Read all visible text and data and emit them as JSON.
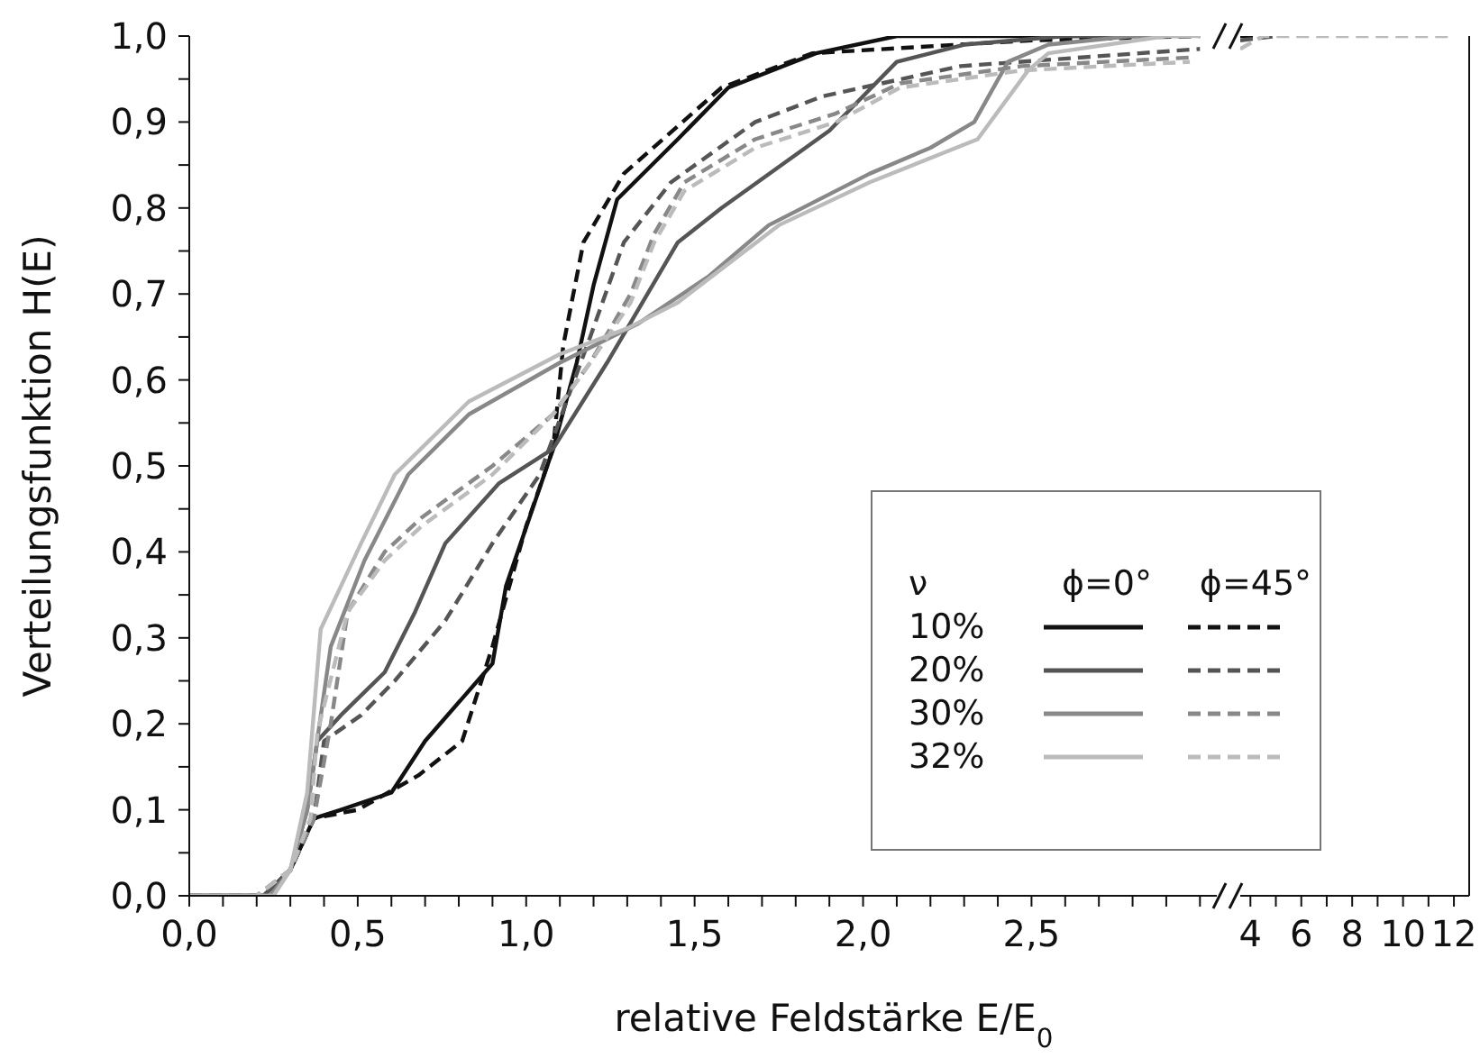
{
  "chart_data": [
    {
      "type": "line",
      "ylabel": "Verteilungsfunktion H(E)",
      "xlabel": "relative Feldstärke E/E$_{0}$",
      "legend": "bottom right",
      "legend_title": "ν",
      "annotations": [
        "ϕ=0°",
        "ϕ=45°"
      ],
      "marker": "none",
      "xlim": [
        0,
        3.05
      ],
      "xticks": [
        {
          "value": 0,
          "label": "0,0"
        },
        {
          "value": 0.1,
          "label": null
        },
        {
          "value": 0.2,
          "label": null
        },
        {
          "value": 0.3,
          "label": null
        },
        {
          "value": 0.4,
          "label": null
        },
        {
          "value": 0.5,
          "label": "0,5"
        },
        {
          "value": 0.6,
          "label": null
        },
        {
          "value": 0.7,
          "label": null
        },
        {
          "value": 0.8,
          "label": null
        },
        {
          "value": 0.9,
          "label": null
        },
        {
          "value": 1,
          "label": "1,0"
        },
        {
          "value": 1.1,
          "label": null
        },
        {
          "value": 1.2,
          "label": null
        },
        {
          "value": 1.3,
          "label": null
        },
        {
          "value": 1.4,
          "label": null
        },
        {
          "value": 1.5,
          "label": "1,5"
        },
        {
          "value": 1.6,
          "label": null
        },
        {
          "value": 1.7,
          "label": null
        },
        {
          "value": 1.8,
          "label": null
        },
        {
          "value": 1.9,
          "label": null
        },
        {
          "value": 2,
          "label": "2,0"
        },
        {
          "value": 2.1,
          "label": null
        },
        {
          "value": 2.2,
          "label": null
        },
        {
          "value": 2.3,
          "label": null
        },
        {
          "value": 2.4,
          "label": null
        },
        {
          "value": 2.5,
          "label": "2,5"
        },
        {
          "value": 2.6,
          "label": null
        },
        {
          "value": 2.7,
          "label": null
        },
        {
          "value": 2.8,
          "label": null
        },
        {
          "value": 2.9,
          "label": null
        },
        {
          "value": 3,
          "label": null
        }
      ],
      "ylim": [
        0,
        1
      ],
      "yticks": [
        {
          "value": 0,
          "label": "0,0"
        },
        {
          "value": 0.05,
          "label": null
        },
        {
          "value": 0.1,
          "label": "0,1"
        },
        {
          "value": 0.15,
          "label": null
        },
        {
          "value": 0.2,
          "label": "0,2"
        },
        {
          "value": 0.25,
          "label": null
        },
        {
          "value": 0.3,
          "label": "0,3"
        },
        {
          "value": 0.35,
          "label": null
        },
        {
          "value": 0.4,
          "label": "0,4"
        },
        {
          "value": 0.45,
          "label": null
        },
        {
          "value": 0.5,
          "label": "0,5"
        },
        {
          "value": 0.55,
          "label": null
        },
        {
          "value": 0.6,
          "label": "0,6"
        },
        {
          "value": 0.65,
          "label": null
        },
        {
          "value": 0.7,
          "label": "0,7"
        },
        {
          "value": 0.75,
          "label": null
        },
        {
          "value": 0.8,
          "label": "0,8"
        },
        {
          "value": 0.85,
          "label": null
        },
        {
          "value": 0.9,
          "label": "0,9"
        },
        {
          "value": 0.95,
          "label": null
        },
        {
          "value": 1,
          "label": "1,0"
        }
      ],
      "series": [
        {
          "name": "10%",
          "color": "#111111",
          "line_style": "solid",
          "x": [
            0,
            0.22,
            0.3,
            0.37,
            0.45,
            0.6,
            0.7,
            0.9,
            0.94,
            1.08,
            1.15,
            1.2,
            1.27,
            1.45,
            1.6,
            1.86,
            2.1,
            2.9
          ],
          "values": [
            0,
            0,
            0.03,
            0.09,
            0.1,
            0.12,
            0.18,
            0.27,
            0.36,
            0.52,
            0.62,
            0.71,
            0.81,
            0.88,
            0.94,
            0.98,
            1,
            1
          ]
        },
        {
          "color": "#111111",
          "line_style": "dashed",
          "x": [
            0,
            0.22,
            0.3,
            0.37,
            0.5,
            0.68,
            0.81,
            0.9,
            1,
            1.08,
            1.11,
            1.17,
            1.29,
            1.58,
            1.85,
            2.5,
            3.0
          ],
          "values": [
            0,
            0,
            0.03,
            0.09,
            0.1,
            0.14,
            0.18,
            0.29,
            0.43,
            0.52,
            0.64,
            0.76,
            0.84,
            0.94,
            0.98,
            0.995,
            1
          ]
        },
        {
          "name": "20%",
          "color": "#555555",
          "line_style": "solid",
          "x": [
            0,
            0.22,
            0.3,
            0.35,
            0.38,
            0.45,
            0.58,
            0.67,
            0.76,
            0.92,
            1.08,
            1.24,
            1.45,
            1.58,
            1.9,
            2.0,
            2.1,
            2.3,
            2.6,
            2.9
          ],
          "values": [
            0,
            0,
            0.03,
            0.1,
            0.18,
            0.21,
            0.26,
            0.33,
            0.41,
            0.48,
            0.52,
            0.62,
            0.76,
            0.8,
            0.89,
            0.93,
            0.97,
            0.99,
            1,
            1
          ]
        },
        {
          "color": "#555555",
          "line_style": "dashed",
          "x": [
            0,
            0.2,
            0.3,
            0.37,
            0.4,
            0.51,
            0.61,
            0.76,
            0.9,
            1.04,
            1.19,
            1.29,
            1.43,
            1.68,
            1.88,
            2.29,
            2.82,
            3.0
          ],
          "values": [
            0,
            0,
            0.03,
            0.09,
            0.18,
            0.21,
            0.25,
            0.32,
            0.41,
            0.49,
            0.65,
            0.76,
            0.83,
            0.9,
            0.93,
            0.965,
            0.98,
            0.985
          ]
        },
        {
          "name": "30%",
          "color": "#888888",
          "line_style": "solid",
          "x": [
            0,
            0.24,
            0.3,
            0.35,
            0.42,
            0.52,
            0.65,
            0.83,
            1.1,
            1.33,
            1.54,
            1.72,
            2.02,
            2.2,
            2.33,
            2.43,
            2.55,
            2.8,
            2.95
          ],
          "values": [
            0,
            0,
            0.03,
            0.1,
            0.29,
            0.39,
            0.49,
            0.56,
            0.62,
            0.665,
            0.72,
            0.78,
            0.84,
            0.87,
            0.9,
            0.97,
            0.99,
            1,
            1
          ]
        },
        {
          "color": "#888888",
          "line_style": "dashed",
          "x": [
            0,
            0.2,
            0.3,
            0.37,
            0.42,
            0.47,
            0.58,
            0.69,
            0.9,
            1.08,
            1.19,
            1.31,
            1.38,
            1.47,
            1.68,
            1.92,
            2.11,
            2.47,
            2.97
          ],
          "values": [
            0,
            0,
            0.03,
            0.09,
            0.2,
            0.33,
            0.4,
            0.44,
            0.5,
            0.56,
            0.62,
            0.7,
            0.77,
            0.83,
            0.88,
            0.91,
            0.945,
            0.965,
            0.975
          ]
        },
        {
          "name": "32%",
          "color": "#bbbbbb",
          "line_style": "solid",
          "x": [
            0,
            0.25,
            0.3,
            0.35,
            0.39,
            0.51,
            0.61,
            0.83,
            1.1,
            1.3,
            1.45,
            1.75,
            2.02,
            2.34,
            2.49,
            2.55,
            2.9,
            3.0
          ],
          "values": [
            0,
            0,
            0.03,
            0.12,
            0.31,
            0.41,
            0.49,
            0.575,
            0.63,
            0.66,
            0.69,
            0.78,
            0.83,
            0.88,
            0.96,
            0.98,
            1,
            1
          ]
        },
        {
          "color": "#bbbbbb",
          "line_style": "dashed",
          "x": [
            0,
            0.2,
            0.3,
            0.36,
            0.38,
            0.47,
            0.58,
            0.69,
            0.9,
            1.08,
            1.19,
            1.31,
            1.38,
            1.47,
            1.68,
            1.92,
            2.11,
            2.47,
            2.97
          ],
          "values": [
            0,
            0,
            0.03,
            0.09,
            0.19,
            0.33,
            0.39,
            0.43,
            0.49,
            0.56,
            0.62,
            0.69,
            0.76,
            0.82,
            0.87,
            0.9,
            0.94,
            0.96,
            0.97
          ]
        }
      ]
    },
    {
      "type": "line",
      "tick_labels": "x",
      "marker": "none",
      "xlim": [
        3.6,
        12.6
      ],
      "xticks": [
        4,
        {
          "value": 5,
          "label": null
        },
        6,
        {
          "value": 7,
          "label": null
        },
        8,
        {
          "value": 9,
          "label": null
        },
        10,
        {
          "value": 11,
          "label": null
        },
        12
      ],
      "ylim": [
        0,
        1
      ],
      "yticks": [
        {
          "value": 0,
          "label": null
        },
        {
          "value": 0.1,
          "label": null
        },
        {
          "value": 0.2,
          "label": null
        },
        {
          "value": 0.3,
          "label": null
        },
        {
          "value": 0.4,
          "label": null
        },
        {
          "value": 0.5,
          "label": null
        },
        {
          "value": 0.6,
          "label": null
        },
        {
          "value": 0.7,
          "label": null
        },
        {
          "value": 0.8,
          "label": null
        },
        {
          "value": 0.9,
          "label": null
        },
        {
          "value": 1,
          "label": null
        }
      ],
      "series": [
        {
          "color": "#111111",
          "line_style": "dashed",
          "x": [
            3.6,
            4.3
          ],
          "values": [
            1,
            1
          ]
        },
        {
          "color": "#555555",
          "line_style": "dashed",
          "x": [
            3.6,
            5.0
          ],
          "values": [
            0.995,
            1
          ]
        },
        {
          "color": "#bbbbbb",
          "line_style": "dashed",
          "x": [
            3.6,
            4.5,
            12
          ],
          "values": [
            0.985,
            1,
            1
          ]
        }
      ]
    }
  ]
}
